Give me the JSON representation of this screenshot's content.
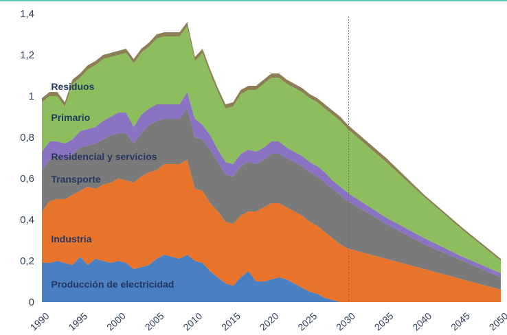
{
  "chart_data": {
    "type": "area",
    "stacked": true,
    "title": "",
    "xlabel": "",
    "ylabel": "",
    "xlim": [
      1990,
      2050
    ],
    "ylim": [
      0,
      1.4
    ],
    "grid": false,
    "legend": "inline-labels",
    "y_ticks": [
      "0",
      "0,2",
      "0,4",
      "0,6",
      "0,8",
      "1",
      "1,2",
      "1,4"
    ],
    "y_tick_values": [
      0,
      0.2,
      0.4,
      0.6,
      0.8,
      1.0,
      1.2,
      1.4
    ],
    "x_ticks": [
      "1990",
      "1995",
      "2000",
      "2005",
      "2010",
      "2015",
      "2020",
      "2025",
      "2030",
      "2035",
      "2040",
      "2045",
      "2050"
    ],
    "x_tick_values": [
      1990,
      1995,
      2000,
      2005,
      2010,
      2015,
      2020,
      2025,
      2030,
      2035,
      2040,
      2045,
      2050
    ],
    "reference_line": {
      "x": 2030.1,
      "style": "dashed"
    },
    "x": [
      1990,
      1991,
      1992,
      1993,
      1994,
      1995,
      1996,
      1997,
      1998,
      1999,
      2000,
      2001,
      2002,
      2003,
      2004,
      2005,
      2006,
      2007,
      2008,
      2009,
      2010,
      2011,
      2012,
      2013,
      2014,
      2015,
      2016,
      2017,
      2018,
      2019,
      2020,
      2021,
      2022,
      2023,
      2024,
      2025,
      2026,
      2027,
      2028,
      2029,
      2030,
      2035,
      2040,
      2045,
      2050
    ],
    "series": [
      {
        "name": "Producción de electricidad",
        "color": "#4a7fc1",
        "values": [
          0.19,
          0.19,
          0.2,
          0.19,
          0.18,
          0.22,
          0.18,
          0.21,
          0.2,
          0.19,
          0.2,
          0.19,
          0.16,
          0.17,
          0.18,
          0.21,
          0.23,
          0.22,
          0.21,
          0.23,
          0.2,
          0.19,
          0.15,
          0.12,
          0.09,
          0.08,
          0.12,
          0.15,
          0.1,
          0.1,
          0.11,
          0.12,
          0.11,
          0.09,
          0.07,
          0.05,
          0.04,
          0.02,
          0.01,
          0.0,
          0.0,
          0.0,
          0.0,
          0.0,
          0.0
        ]
      },
      {
        "name": "Industria",
        "color": "#e8742c",
        "values": [
          0.25,
          0.3,
          0.3,
          0.31,
          0.34,
          0.32,
          0.38,
          0.34,
          0.37,
          0.39,
          0.4,
          0.4,
          0.42,
          0.44,
          0.45,
          0.43,
          0.44,
          0.45,
          0.46,
          0.46,
          0.35,
          0.35,
          0.33,
          0.32,
          0.3,
          0.3,
          0.3,
          0.29,
          0.34,
          0.36,
          0.37,
          0.36,
          0.35,
          0.35,
          0.35,
          0.34,
          0.33,
          0.32,
          0.3,
          0.28,
          0.26,
          0.21,
          0.16,
          0.11,
          0.06
        ]
      },
      {
        "name": "Transporte",
        "color": "#7a7a7a",
        "values": [
          0.2,
          0.2,
          0.21,
          0.19,
          0.2,
          0.21,
          0.2,
          0.22,
          0.22,
          0.23,
          0.22,
          0.23,
          0.19,
          0.21,
          0.23,
          0.24,
          0.22,
          0.22,
          0.22,
          0.25,
          0.25,
          0.25,
          0.26,
          0.24,
          0.23,
          0.23,
          0.24,
          0.24,
          0.23,
          0.23,
          0.24,
          0.24,
          0.24,
          0.24,
          0.24,
          0.24,
          0.24,
          0.24,
          0.24,
          0.24,
          0.23,
          0.17,
          0.12,
          0.09,
          0.06
        ]
      },
      {
        "name": "Residencial y servicios",
        "color": "#8b72c3",
        "values": [
          0.09,
          0.09,
          0.07,
          0.08,
          0.07,
          0.08,
          0.08,
          0.08,
          0.09,
          0.09,
          0.1,
          0.1,
          0.08,
          0.09,
          0.08,
          0.08,
          0.07,
          0.07,
          0.07,
          0.08,
          0.09,
          0.07,
          0.07,
          0.06,
          0.06,
          0.06,
          0.06,
          0.06,
          0.06,
          0.06,
          0.06,
          0.06,
          0.05,
          0.05,
          0.05,
          0.05,
          0.05,
          0.05,
          0.04,
          0.04,
          0.04,
          0.03,
          0.03,
          0.02,
          0.02
        ]
      },
      {
        "name": "Primario",
        "color": "#8cbe5e",
        "values": [
          0.24,
          0.22,
          0.22,
          0.18,
          0.27,
          0.26,
          0.29,
          0.3,
          0.3,
          0.29,
          0.28,
          0.29,
          0.31,
          0.3,
          0.3,
          0.32,
          0.33,
          0.33,
          0.33,
          0.32,
          0.28,
          0.35,
          0.3,
          0.28,
          0.26,
          0.28,
          0.29,
          0.29,
          0.3,
          0.31,
          0.31,
          0.31,
          0.31,
          0.31,
          0.31,
          0.31,
          0.31,
          0.31,
          0.32,
          0.32,
          0.31,
          0.27,
          0.2,
          0.13,
          0.06
        ]
      },
      {
        "name": "Residuos",
        "color": "#8d7e55",
        "values": [
          0.02,
          0.02,
          0.02,
          0.02,
          0.02,
          0.02,
          0.02,
          0.02,
          0.02,
          0.02,
          0.02,
          0.02,
          0.02,
          0.02,
          0.02,
          0.02,
          0.02,
          0.02,
          0.02,
          0.02,
          0.02,
          0.02,
          0.02,
          0.02,
          0.02,
          0.02,
          0.02,
          0.02,
          0.02,
          0.02,
          0.02,
          0.02,
          0.02,
          0.02,
          0.02,
          0.02,
          0.02,
          0.02,
          0.02,
          0.02,
          0.02,
          0.02,
          0.01,
          0.01,
          0.01
        ]
      }
    ],
    "inline_labels": [
      {
        "series": "Residuos",
        "text": "Residuos",
        "at": [
          1991.2,
          1.03
        ]
      },
      {
        "series": "Primario",
        "text": "Primario",
        "at": [
          1991.2,
          0.88
        ]
      },
      {
        "series": "Residencial y servicios",
        "text": "Residencial y servicios",
        "at": [
          1991.2,
          0.69
        ]
      },
      {
        "series": "Transporte",
        "text": "Transporte",
        "at": [
          1991.2,
          0.58
        ]
      },
      {
        "series": "Industria",
        "text": "Industria",
        "at": [
          1991.2,
          0.29
        ]
      },
      {
        "series": "Producción de electricidad",
        "text": "Producción de electricidad",
        "at": [
          1991.2,
          0.07
        ]
      }
    ]
  }
}
